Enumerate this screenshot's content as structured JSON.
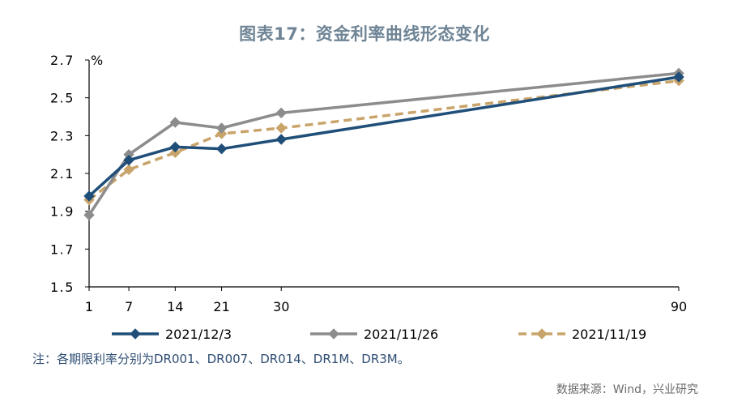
{
  "title": "图表17：资金利率曲线形态变化",
  "note": "注：各期限利率分别为DR001、DR007、DR014、DR1M、DR3M。",
  "source": "数据来源：Wind，兴业研究",
  "colors": {
    "s1": "#1f4e79",
    "s2": "#8c8c8c",
    "s3": "#c9a46a"
  },
  "chart_data": {
    "type": "line",
    "title": "图表17：资金利率曲线形态变化",
    "x": [
      1,
      7,
      14,
      21,
      30,
      90
    ],
    "x_tick_labels": [
      "1",
      "7",
      "14",
      "21",
      "30",
      "90"
    ],
    "xlim": [
      1,
      90
    ],
    "ylim": [
      1.5,
      2.7
    ],
    "y_ticks": [
      1.5,
      1.7,
      1.9,
      2.1,
      2.3,
      2.5,
      2.7
    ],
    "y_tick_labels": [
      "1.5",
      "1.7",
      "1.9",
      "2.1",
      "2.3",
      "2.5",
      "2.7"
    ],
    "ylabel": "%",
    "xlabel": "",
    "grid": false,
    "legend_position": "bottom",
    "series": [
      {
        "name": "2021/12/3",
        "values": [
          1.98,
          2.17,
          2.24,
          2.23,
          2.28,
          2.61
        ],
        "style": "solid",
        "color": "#1f4e79"
      },
      {
        "name": "2021/11/26",
        "values": [
          1.88,
          2.2,
          2.37,
          2.34,
          2.42,
          2.63
        ],
        "style": "solid",
        "color": "#8c8c8c"
      },
      {
        "name": "2021/11/19",
        "values": [
          1.96,
          2.12,
          2.21,
          2.31,
          2.34,
          2.59
        ],
        "style": "dashed",
        "color": "#c9a46a"
      }
    ]
  }
}
